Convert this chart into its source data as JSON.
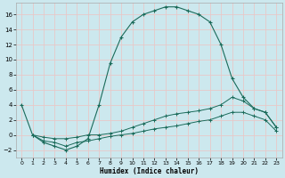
{
  "xlabel": "Humidex (Indice chaleur)",
  "xlim": [
    -0.5,
    23.5
  ],
  "ylim": [
    -3,
    17.5
  ],
  "xticks": [
    0,
    1,
    2,
    3,
    4,
    5,
    6,
    7,
    8,
    9,
    10,
    11,
    12,
    13,
    14,
    15,
    16,
    17,
    18,
    19,
    20,
    21,
    22,
    23
  ],
  "yticks": [
    -2,
    0,
    2,
    4,
    6,
    8,
    10,
    12,
    14,
    16
  ],
  "bg_color": "#cce8ee",
  "grid_color": "#e8c8c8",
  "line_color": "#1a6b5a",
  "line1_x": [
    0,
    1,
    2,
    3,
    4,
    5,
    6,
    7,
    8,
    9,
    10,
    11,
    12,
    13,
    14,
    15,
    16,
    17,
    18,
    19,
    20,
    21,
    22,
    23
  ],
  "line1_y": [
    4,
    0,
    -1,
    -1.5,
    -2,
    -1.5,
    -0.5,
    4,
    9.5,
    13,
    15,
    16,
    16.5,
    17,
    17,
    16.5,
    16,
    15,
    12,
    7.5,
    5,
    3.5,
    3,
    1
  ],
  "line2_x": [
    1,
    2,
    3,
    4,
    5,
    6,
    7,
    8,
    9,
    10,
    11,
    12,
    13,
    14,
    15,
    16,
    17,
    18,
    19,
    20,
    21,
    22,
    23
  ],
  "line2_y": [
    0,
    -0.3,
    -0.5,
    -0.5,
    -0.3,
    0,
    0,
    0.2,
    0.5,
    1,
    1.5,
    2,
    2.5,
    2.8,
    3,
    3.2,
    3.5,
    4,
    5,
    4.5,
    3.5,
    3,
    1
  ],
  "line3_x": [
    1,
    2,
    3,
    4,
    5,
    6,
    7,
    8,
    9,
    10,
    11,
    12,
    13,
    14,
    15,
    16,
    17,
    18,
    19,
    20,
    21,
    22,
    23
  ],
  "line3_y": [
    0,
    -0.8,
    -1,
    -1.5,
    -1,
    -0.8,
    -0.5,
    -0.2,
    0,
    0.2,
    0.5,
    0.8,
    1,
    1.2,
    1.5,
    1.8,
    2,
    2.5,
    3,
    3,
    2.5,
    2,
    0.5
  ]
}
